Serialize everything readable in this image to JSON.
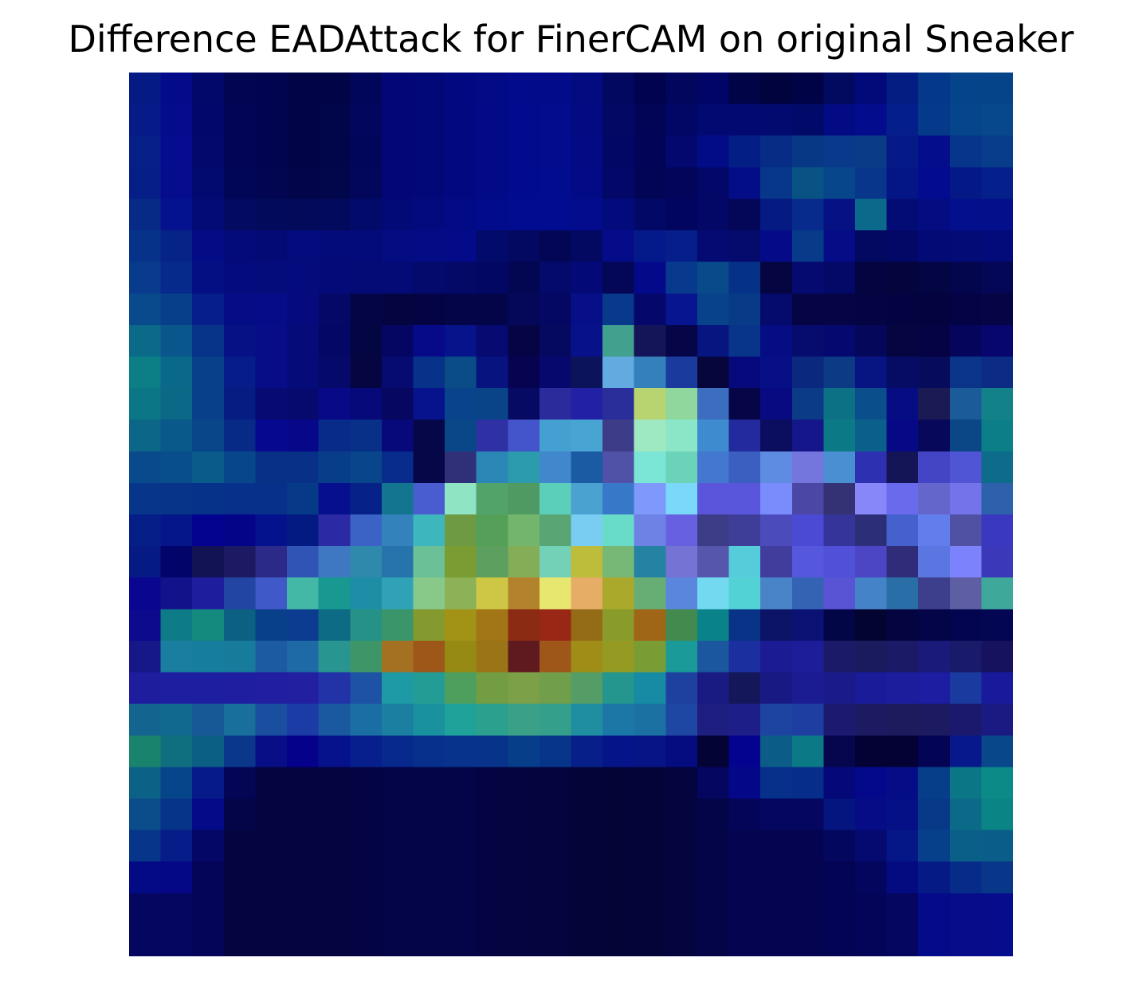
{
  "title": "Difference EADAttack for FinerCAM on original Sneaker",
  "image": {
    "description_icon": "heatmap-image",
    "grid_size": 28,
    "colors_rows": [
      [
        "#061a86",
        "#040b8b",
        "#02086a",
        "#010552",
        "#010450",
        "#010447",
        "#010548",
        "#02065a",
        "#020676",
        "#020877",
        "#020980",
        "#020a86",
        "#020b8b",
        "#020c8a",
        "#020b80",
        "#020860",
        "#020350",
        "#02075d",
        "#010566",
        "#010447",
        "#01033f",
        "#010347",
        "#020a5f",
        "#020a79",
        "#031d83",
        "#04388a",
        "#05438a",
        "#06448a"
      ],
      [
        "#061b88",
        "#040b8d",
        "#02086b",
        "#010553",
        "#010450",
        "#010447",
        "#010549",
        "#02065c",
        "#020676",
        "#020877",
        "#020980",
        "#020a87",
        "#020b8d",
        "#020c8c",
        "#020b82",
        "#020864",
        "#020456",
        "#020765",
        "#020a71",
        "#020a72",
        "#020a6f",
        "#020a69",
        "#020b83",
        "#030c8d",
        "#041e8c",
        "#053a8a",
        "#06458b",
        "#07478b"
      ],
      [
        "#061f89",
        "#050c8f",
        "#03096c",
        "#020554",
        "#010450",
        "#010447",
        "#010549",
        "#02065b",
        "#020676",
        "#020877",
        "#020980",
        "#020a87",
        "#020b8e",
        "#020c8d",
        "#020b83",
        "#020766",
        "#020557",
        "#02086e",
        "#030c87",
        "#031f85",
        "#062c85",
        "#073886",
        "#08398a",
        "#093b86",
        "#061a87",
        "#040e8c",
        "#06358b",
        "#073d8b"
      ],
      [
        "#061f88",
        "#050c8e",
        "#030a6f",
        "#020656",
        "#020551",
        "#020549",
        "#02064b",
        "#02075c",
        "#020677",
        "#020878",
        "#020980",
        "#020a87",
        "#020b8e",
        "#020c8e",
        "#020b85",
        "#020768",
        "#020555",
        "#020559",
        "#030868",
        "#040d88",
        "#06378a",
        "#085384",
        "#08468b",
        "#07368a",
        "#041686",
        "#030b8f",
        "#041886",
        "#05208a"
      ],
      [
        "#072a87",
        "#05128f",
        "#030b76",
        "#020a61",
        "#020a5b",
        "#020a59",
        "#020a5d",
        "#020a6a",
        "#020a78",
        "#020a7e",
        "#020b85",
        "#020b8b",
        "#020c90",
        "#020c90",
        "#020c8d",
        "#020b7b",
        "#020866",
        "#020560",
        "#030766",
        "#040657",
        "#051a82",
        "#072b8d",
        "#061284",
        "#0b6a8b",
        "#030c75",
        "#030c80",
        "#030f8c",
        "#040f8c"
      ],
      [
        "#07328a",
        "#062387",
        "#030c85",
        "#030a79",
        "#030a76",
        "#030c7d",
        "#030b7b",
        "#030b7b",
        "#030c80",
        "#030c84",
        "#030b88",
        "#030b6a",
        "#030861",
        "#030655",
        "#030860",
        "#040c8a",
        "#051a8a",
        "#061e8a",
        "#050a72",
        "#050a6d",
        "#050b88",
        "#073b8a",
        "#060c86",
        "#030960",
        "#030866",
        "#030a76",
        "#030b77",
        "#030b7a"
      ],
      [
        "#083b8c",
        "#062a8b",
        "#050f84",
        "#040b7c",
        "#040b7b",
        "#040b7c",
        "#040b78",
        "#040b76",
        "#040a76",
        "#04096c",
        "#040867",
        "#030764",
        "#030651",
        "#030a69",
        "#030a78",
        "#030755",
        "#040989",
        "#073a8c",
        "#084a8a",
        "#063188",
        "#040541",
        "#040a6f",
        "#040866",
        "#040540",
        "#04053d",
        "#040543",
        "#03064c",
        "#040656"
      ],
      [
        "#084a8b",
        "#073f8b",
        "#061e89",
        "#050d86",
        "#050c87",
        "#050b7d",
        "#050866",
        "#040545",
        "#040440",
        "#040444",
        "#040548",
        "#040549",
        "#050859",
        "#050862",
        "#060f87",
        "#073a8b",
        "#05086a",
        "#071690",
        "#07428a",
        "#073b87",
        "#050a6d",
        "#050546",
        "#050545",
        "#050443",
        "#040342",
        "#040340",
        "#040346",
        "#050545"
      ],
      [
        "#0b6a88",
        "#09568c",
        "#073489",
        "#061186",
        "#060d87",
        "#060b7a",
        "#050767",
        "#040543",
        "#050662",
        "#060a89",
        "#07138a",
        "#060a71",
        "#050546",
        "#060960",
        "#07128a",
        "#41a18e",
        "#141558",
        "#060548",
        "#071580",
        "#08358a",
        "#060c84",
        "#050c6d",
        "#05086f",
        "#05075a",
        "#050542",
        "#050343",
        "#05065b",
        "#06066e"
      ],
      [
        "#0b7e86",
        "#0a688b",
        "#084189",
        "#061c88",
        "#060d87",
        "#060b7a",
        "#050a6a",
        "#050542",
        "#060b72",
        "#083189",
        "#0a4d86",
        "#07137f",
        "#060451",
        "#07086d",
        "#0b135a",
        "#62aadf",
        "#3480bc",
        "#1a3a9e",
        "#06063d",
        "#06097b",
        "#060f85",
        "#0a287d",
        "#0d3a84",
        "#071583",
        "#060b63",
        "#060b5c",
        "#0b3588",
        "#0b2b84"
      ],
      [
        "#0b7686",
        "#0b6887",
        "#084189",
        "#061c82",
        "#060a72",
        "#060a6f",
        "#070986",
        "#06097a",
        "#060760",
        "#07138c",
        "#09438b",
        "#0a4488",
        "#060a62",
        "#2b2b9c",
        "#2221a5",
        "#2a2e9a",
        "#b7d471",
        "#8fd79c",
        "#3c6ec0",
        "#060548",
        "#070a80",
        "#0b3a87",
        "#0c7185",
        "#0a4f8b",
        "#060c84",
        "#1a1a55",
        "#1c5b9a",
        "#138288"
      ],
      [
        "#0b6687",
        "#09598a",
        "#084589",
        "#072a87",
        "#06088f",
        "#060889",
        "#082a89",
        "#083089",
        "#07097a",
        "#050749",
        "#0a4789",
        "#2f30a4",
        "#4455cc",
        "#44a0d0",
        "#48a4d2",
        "#3c3c88",
        "#9fe9c2",
        "#8ae6c7",
        "#3e8bcf",
        "#232a9d",
        "#0b0d5e",
        "#14168a",
        "#0c7a86",
        "#0b608b",
        "#060886",
        "#070859",
        "#0b4687",
        "#0b7e88"
      ],
      [
        "#084a8b",
        "#094e8c",
        "#0a5a8a",
        "#08468b",
        "#083186",
        "#073086",
        "#083e89",
        "#08458a",
        "#072c8c",
        "#060749",
        "#303079",
        "#2b88b6",
        "#2b9bad",
        "#4087cc",
        "#1b5ba3",
        "#4f52a6",
        "#7be6d5",
        "#6bd3b8",
        "#4377d0",
        "#3b5fc0",
        "#5d8ce2",
        "#7475dd",
        "#4a8fd2",
        "#2d30b0",
        "#141556",
        "#4445c4",
        "#5055d6",
        "#0d6c8b"
      ],
      [
        "#073589",
        "#073489",
        "#073289",
        "#06308a",
        "#06308a",
        "#063a89",
        "#060f8d",
        "#062289",
        "#137590",
        "#4a5dd0",
        "#8ee4c3",
        "#52a36a",
        "#4f9a63",
        "#5bcfba",
        "#4aa2d0",
        "#3878c8",
        "#7f98fc",
        "#7ad8fb",
        "#5b55dc",
        "#5a56dc",
        "#7a8bfc",
        "#4a48a4",
        "#343174",
        "#8887fa",
        "#6a6bec",
        "#6466cc",
        "#7473ea",
        "#2d61ab"
      ],
      [
        "#061f88",
        "#05168a",
        "#030390",
        "#040489",
        "#04128d",
        "#041a83",
        "#2b2aa4",
        "#3b62c5",
        "#3482bc",
        "#3db6be",
        "#6d9a42",
        "#55a058",
        "#74b56d",
        "#59a573",
        "#79cdf2",
        "#68dcc8",
        "#6e82e6",
        "#6761e2",
        "#3d3c86",
        "#3e3e98",
        "#4c4bbc",
        "#4a4ad4",
        "#35349a",
        "#2d2e78",
        "#4461ce",
        "#617eec",
        "#5051a3",
        "#3938be"
      ],
      [
        "#061a86",
        "#03046a",
        "#111355",
        "#1c1a62",
        "#2b2a88",
        "#3053b6",
        "#3e78c2",
        "#2f89ac",
        "#2774ac",
        "#6bc098",
        "#7b9c33",
        "#5c9f5e",
        "#84ad58",
        "#72d1b7",
        "#bdbc3b",
        "#77b876",
        "#2483a3",
        "#7574d4",
        "#5756ad",
        "#56ccda",
        "#403d9c",
        "#5558dc",
        "#5050d8",
        "#4c46c5",
        "#2f2c7a",
        "#5a76e0",
        "#7b82fc",
        "#3c38ba"
      ],
      [
        "#0b0690",
        "#12138b",
        "#1d1d9e",
        "#2244a2",
        "#4059c8",
        "#44b8a6",
        "#189890",
        "#1d8ea5",
        "#30a2b8",
        "#88c98a",
        "#8cb156",
        "#cec645",
        "#b3822d",
        "#e7e66e",
        "#e5ad66",
        "#aaa92c",
        "#67ae75",
        "#5b86dd",
        "#72d9f1",
        "#53d2d6",
        "#4984c8",
        "#3463b4",
        "#5854d3",
        "#4483c8",
        "#2a6ea8",
        "#3e3f8c",
        "#5d5ea3",
        "#3ea89a"
      ],
      [
        "#0d0a8e",
        "#0e7b88",
        "#138a7e",
        "#0c6183",
        "#084089",
        "#0b3c8f",
        "#0e6b85",
        "#269186",
        "#3b956b",
        "#849a2e",
        "#a29317",
        "#a27516",
        "#8c2b13",
        "#982716",
        "#946c17",
        "#899b2b",
        "#a06617",
        "#438a4f",
        "#098389",
        "#083386",
        "#0b1466",
        "#0c1274",
        "#020647",
        "#040430",
        "#040440",
        "#040448",
        "#040550",
        "#030652"
      ],
      [
        "#161788",
        "#1a7ea0",
        "#167d9e",
        "#177b9c",
        "#1c5ba2",
        "#1e6aa6",
        "#299590",
        "#3e9668",
        "#a47022",
        "#9d5718",
        "#968a14",
        "#9a7416",
        "#5f1a1f",
        "#9e5719",
        "#9f8d18",
        "#959b22",
        "#7a9c34",
        "#1a9a98",
        "#1a579e",
        "#1b2f9e",
        "#1b1c94",
        "#1d1d99",
        "#1a1a68",
        "#1a1a5f",
        "#1a1a66",
        "#1a1a7a",
        "#1a1a6a",
        "#16125e"
      ],
      [
        "#1d1d9e",
        "#1e1ea0",
        "#1e1ea1",
        "#1f1da0",
        "#211ea2",
        "#221fa1",
        "#2232a7",
        "#1d52a4",
        "#1e9aa6",
        "#249c96",
        "#4e9e5e",
        "#729d42",
        "#7ca047",
        "#719e4a",
        "#549d66",
        "#24968d",
        "#178ba4",
        "#1e41a0",
        "#1a1b82",
        "#14175a",
        "#191983",
        "#1c1c92",
        "#1a1a8a",
        "#1a1b98",
        "#1c1d9d",
        "#1c1da0",
        "#1a3aa0",
        "#18199b"
      ],
      [
        "#13658f",
        "#12698f",
        "#175897",
        "#186f9b",
        "#1a4e9e",
        "#1b3ca4",
        "#1a58a0",
        "#1b6ea3",
        "#1a7fa0",
        "#1a919e",
        "#1fa299",
        "#2ba08e",
        "#3aa087",
        "#349f8a",
        "#1f8ea1",
        "#1b77a6",
        "#1b72a2",
        "#1e47a4",
        "#1e1d80",
        "#1e1e88",
        "#1e44a2",
        "#1f3ea2",
        "#1b1a70",
        "#1c1b62",
        "#1c1b5e",
        "#1c1b62",
        "#1b196e",
        "#1a1a82"
      ],
      [
        "#1a836e",
        "#0f6f7e",
        "#0b5e84",
        "#0a378a",
        "#070e86",
        "#05018a",
        "#06128b",
        "#071f8c",
        "#07288c",
        "#07308c",
        "#07338c",
        "#07348a",
        "#073e8a",
        "#07358a",
        "#071f88",
        "#06148a",
        "#071486",
        "#050c80",
        "#040336",
        "#040390",
        "#0b5d88",
        "#0c7986",
        "#05064e",
        "#040235",
        "#040235",
        "#040455",
        "#06188c",
        "#08478a"
      ],
      [
        "#0b6286",
        "#07458a",
        "#071a8a",
        "#040655",
        "#040440",
        "#040440",
        "#040440",
        "#040444",
        "#040448",
        "#040448",
        "#040448",
        "#040442",
        "#040440",
        "#04043e",
        "#040439",
        "#040436",
        "#040439",
        "#04043e",
        "#040660",
        "#040888",
        "#06308a",
        "#062d89",
        "#040878",
        "#04098c",
        "#040c86",
        "#063e8a",
        "#0b7686",
        "#0c8a87"
      ],
      [
        "#0a4d8a",
        "#063489",
        "#050b88",
        "#040448",
        "#040440",
        "#040440",
        "#040440",
        "#040444",
        "#040448",
        "#040448",
        "#040448",
        "#040442",
        "#040440",
        "#04043e",
        "#040439",
        "#040436",
        "#040439",
        "#04043e",
        "#040448",
        "#040558",
        "#040660",
        "#040660",
        "#05157f",
        "#050c86",
        "#050f86",
        "#063a89",
        "#0a6a88",
        "#0b8486"
      ],
      [
        "#073589",
        "#061c88",
        "#040766",
        "#040440",
        "#040440",
        "#040440",
        "#040440",
        "#040444",
        "#040448",
        "#040448",
        "#040448",
        "#040442",
        "#040440",
        "#04043e",
        "#040439",
        "#040436",
        "#040439",
        "#04043e",
        "#040448",
        "#040450",
        "#040450",
        "#040450",
        "#04075e",
        "#050a70",
        "#051686",
        "#06408a",
        "#095f88",
        "#0a5c89"
      ],
      [
        "#040a86",
        "#040786",
        "#040558",
        "#040440",
        "#040440",
        "#040440",
        "#040440",
        "#040444",
        "#040448",
        "#040448",
        "#040448",
        "#040442",
        "#040440",
        "#04043e",
        "#040439",
        "#040436",
        "#040439",
        "#04043e",
        "#040448",
        "#040450",
        "#040450",
        "#040450",
        "#040455",
        "#04065e",
        "#040b80",
        "#061a86",
        "#072b88",
        "#083689"
      ],
      [
        "#040660",
        "#040660",
        "#040558",
        "#040440",
        "#040440",
        "#040440",
        "#040440",
        "#040444",
        "#040448",
        "#040448",
        "#040448",
        "#040442",
        "#040440",
        "#04043e",
        "#040439",
        "#040436",
        "#040439",
        "#04043e",
        "#040448",
        "#040450",
        "#040450",
        "#040450",
        "#040455",
        "#040558",
        "#040660",
        "#040b8a",
        "#060c8a",
        "#060d8c"
      ],
      [
        "#040660",
        "#040660",
        "#040558",
        "#040440",
        "#040440",
        "#040440",
        "#040440",
        "#040444",
        "#040448",
        "#040448",
        "#040448",
        "#040442",
        "#040440",
        "#04043e",
        "#040439",
        "#040436",
        "#040439",
        "#04043e",
        "#040448",
        "#040450",
        "#040450",
        "#040450",
        "#040455",
        "#040558",
        "#040660",
        "#040b8a",
        "#060c8a",
        "#060d8c"
      ]
    ]
  }
}
